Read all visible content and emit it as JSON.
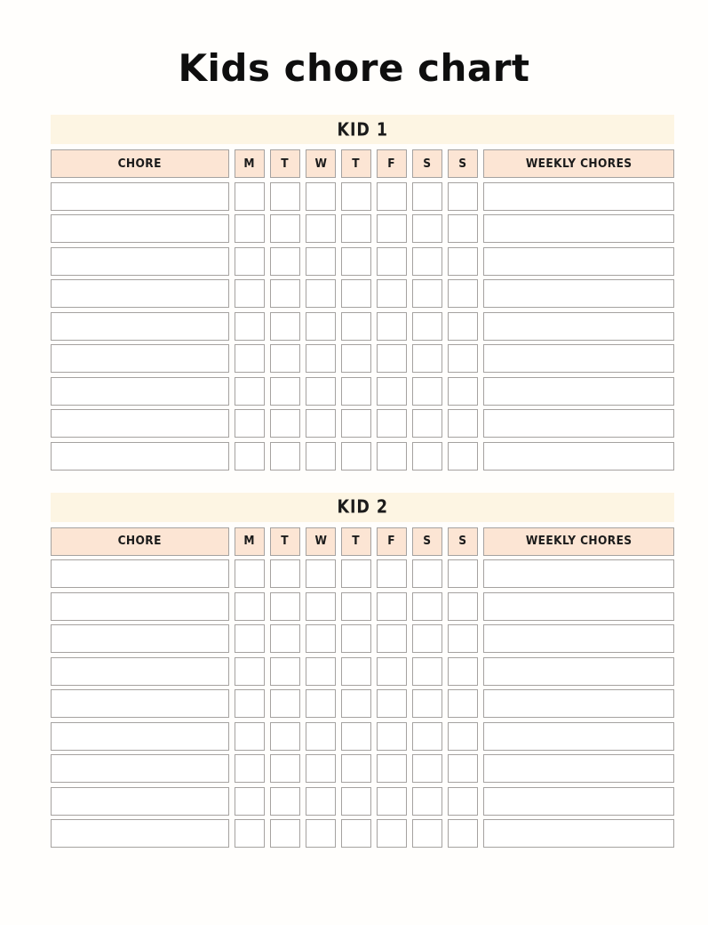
{
  "title": "Kids chore chart",
  "columns": {
    "chore": "CHORE",
    "days": [
      "M",
      "T",
      "W",
      "T",
      "F",
      "S",
      "S"
    ],
    "weekly": "WEEKLY CHORES"
  },
  "sections": [
    {
      "name": "KID 1",
      "rows": 9
    },
    {
      "name": "KID 2",
      "rows": 9
    }
  ],
  "colors": {
    "page_bg": "#fffefc",
    "banner_bg": "#fdf5e3",
    "header_bg": "#fce5d4",
    "cell_border": "#a5a2a0",
    "text": "#161616"
  }
}
